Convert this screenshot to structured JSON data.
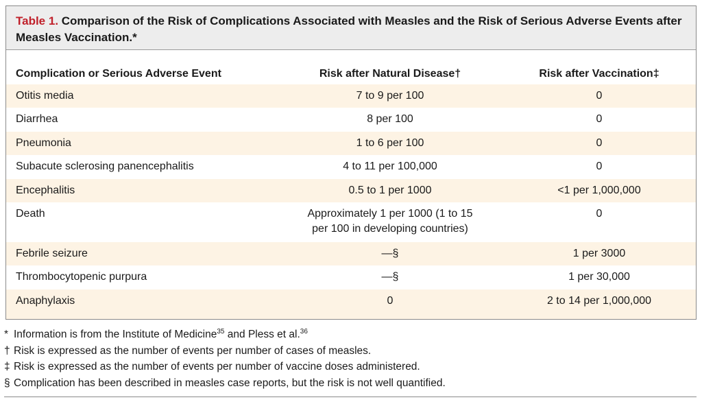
{
  "table": {
    "label": "Table 1.",
    "title": " Comparison of the Risk of Complications Associated with Measles and the Risk of Serious Adverse Events after Measles Vaccination.*",
    "headers": [
      "Complication or Serious Adverse Event",
      "Risk after Natural Disease†",
      "Risk after Vaccination‡"
    ],
    "rows": [
      {
        "event": "Otitis media",
        "natural": "7 to 9 per 100",
        "vaccine": "0"
      },
      {
        "event": "Diarrhea",
        "natural": "8 per 100",
        "vaccine": "0"
      },
      {
        "event": "Pneumonia",
        "natural": "1 to 6 per 100",
        "vaccine": "0"
      },
      {
        "event": "Subacute sclerosing panencephalitis",
        "natural": "4 to 11 per 100,000",
        "vaccine": "0"
      },
      {
        "event": "Encephalitis",
        "natural": "0.5 to 1 per 1000",
        "vaccine": "<1 per 1,000,000"
      },
      {
        "event": "Death",
        "natural": "Approximately 1 per 1000 (1 to 15",
        "natural_line2": "per 100 in developing countries)",
        "vaccine": "0"
      },
      {
        "event": "Febrile seizure",
        "natural": "—§",
        "vaccine": "1 per 3000"
      },
      {
        "event": "Thrombocytopenic purpura",
        "natural": "—§",
        "vaccine": "1 per 30,000"
      },
      {
        "event": "Anaphylaxis",
        "natural": "0",
        "vaccine": "2 to 14 per 1,000,000"
      }
    ]
  },
  "footnotes": [
    {
      "mark": "*",
      "text": "Information is from the Institute of Medicine",
      "sup1": "35",
      "mid": " and Pless et al.",
      "sup2": "36"
    },
    {
      "mark": "†",
      "text": "Risk is expressed as the number of events per number of cases of measles."
    },
    {
      "mark": "‡",
      "text": "Risk is expressed as the number of events per number of vaccine doses administered."
    },
    {
      "mark": "§",
      "text": "Complication has been described in measles case reports, but the risk is not well quantified."
    }
  ]
}
